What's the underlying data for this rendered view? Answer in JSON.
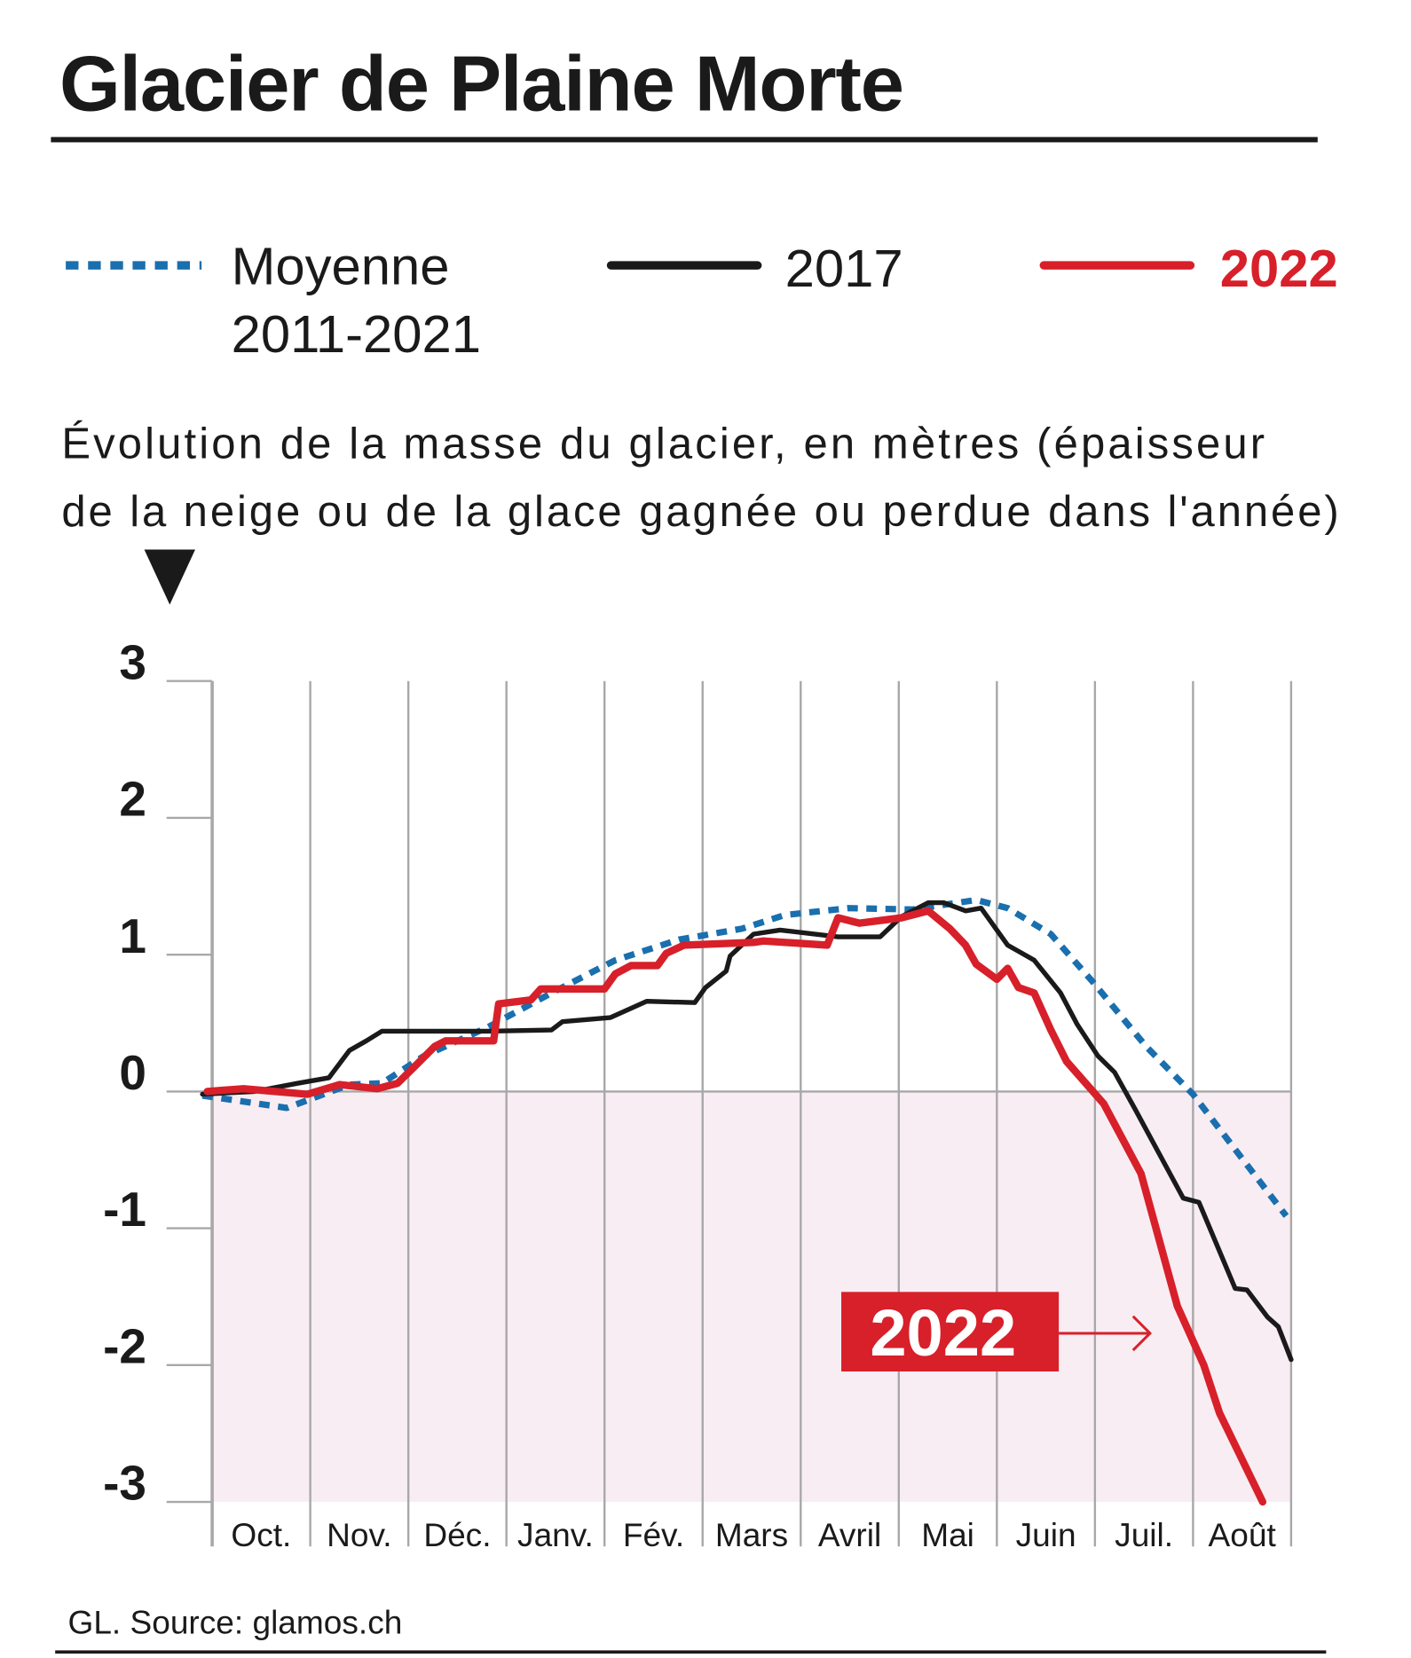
{
  "title": "Glacier de Plaine Morte",
  "legend": [
    {
      "name": "Moyenne",
      "name2": "2011-2021",
      "color": "#1a6fae",
      "style": "dotted"
    },
    {
      "name": "2017",
      "color": "#1a1a1a",
      "style": "solid"
    },
    {
      "name": "2022",
      "color": "#d7202a",
      "style": "solid"
    }
  ],
  "subtitle_line1": "Évolution de la masse du glacier, en mètres (épaisseur",
  "subtitle_line2": "de la neige ou de la glace gagnée ou perdue dans l'année)",
  "source": "GL. Source: glamos.ch",
  "annotation": "2022",
  "chart_data": {
    "type": "line",
    "title": "Glacier de Plaine Morte",
    "ylabel": "Évolution de la masse du glacier, en mètres",
    "ylim": [
      -3,
      3
    ],
    "yticks": [
      "3",
      "2",
      "1",
      "0",
      "-1",
      "-2",
      "-3"
    ],
    "ytick_values": [
      3,
      2,
      1,
      0,
      -1,
      -2,
      -3
    ],
    "xlim": [
      0,
      11
    ],
    "categories": [
      "Oct.",
      "Nov.",
      "Déc.",
      "Janv.",
      "Fév.",
      "Mars",
      "Avril",
      "Mai",
      "Juin",
      "Juil.",
      "Août"
    ],
    "grid": true,
    "series": [
      {
        "name": "Moyenne 2011-2021",
        "color": "#1a6fae",
        "points": [
          [
            -0.1,
            -0.03
          ],
          [
            0,
            -0.04
          ],
          [
            0.76,
            -0.12
          ],
          [
            1.4,
            0.05
          ],
          [
            1.73,
            0.06
          ],
          [
            2.16,
            0.26
          ],
          [
            2.81,
            0.47
          ],
          [
            3.46,
            0.72
          ],
          [
            4.11,
            0.96
          ],
          [
            4.76,
            1.11
          ],
          [
            5.4,
            1.19
          ],
          [
            5.84,
            1.29
          ],
          [
            6.49,
            1.34
          ],
          [
            7.14,
            1.33
          ],
          [
            7.79,
            1.4
          ],
          [
            8.11,
            1.34
          ],
          [
            8.55,
            1.15
          ],
          [
            8.98,
            0.8
          ],
          [
            9.52,
            0.33
          ],
          [
            10.0,
            -0.02
          ],
          [
            10.49,
            -0.48
          ],
          [
            10.95,
            -0.91
          ]
        ]
      },
      {
        "name": "2017",
        "color": "#1a1a1a",
        "points": [
          [
            -0.1,
            -0.02
          ],
          [
            0.43,
            0
          ],
          [
            0.87,
            0.06
          ],
          [
            1.19,
            0.1
          ],
          [
            1.4,
            0.3
          ],
          [
            1.57,
            0.37
          ],
          [
            1.73,
            0.44
          ],
          [
            2.81,
            0.44
          ],
          [
            3.46,
            0.45
          ],
          [
            3.57,
            0.51
          ],
          [
            4.06,
            0.54
          ],
          [
            4.43,
            0.66
          ],
          [
            4.92,
            0.65
          ],
          [
            5.03,
            0.76
          ],
          [
            5.24,
            0.88
          ],
          [
            5.28,
            0.99
          ],
          [
            5.52,
            1.15
          ],
          [
            5.79,
            1.18
          ],
          [
            6.38,
            1.13
          ],
          [
            6.81,
            1.13
          ],
          [
            7.03,
            1.28
          ],
          [
            7.3,
            1.38
          ],
          [
            7.46,
            1.38
          ],
          [
            7.68,
            1.32
          ],
          [
            7.84,
            1.34
          ],
          [
            8.11,
            1.07
          ],
          [
            8.38,
            0.96
          ],
          [
            8.65,
            0.72
          ],
          [
            8.82,
            0.49
          ],
          [
            9.03,
            0.26
          ],
          [
            9.2,
            0.14
          ],
          [
            9.41,
            -0.13
          ],
          [
            9.9,
            -0.78
          ],
          [
            10.06,
            -0.81
          ],
          [
            10.43,
            -1.44
          ],
          [
            10.55,
            -1.45
          ],
          [
            10.76,
            -1.65
          ],
          [
            10.87,
            -1.72
          ],
          [
            11,
            -1.96
          ]
        ]
      },
      {
        "name": "2022",
        "color": "#d7202a",
        "points": [
          [
            -0.05,
            0
          ],
          [
            0.32,
            0.02
          ],
          [
            0.97,
            -0.02
          ],
          [
            1.3,
            0.05
          ],
          [
            1.68,
            0.02
          ],
          [
            1.89,
            0.06
          ],
          [
            2.06,
            0.18
          ],
          [
            2.27,
            0.33
          ],
          [
            2.38,
            0.37
          ],
          [
            2.87,
            0.37
          ],
          [
            2.92,
            0.64
          ],
          [
            3.25,
            0.67
          ],
          [
            3.35,
            0.75
          ],
          [
            4.0,
            0.75
          ],
          [
            4.11,
            0.86
          ],
          [
            4.27,
            0.92
          ],
          [
            4.54,
            0.92
          ],
          [
            4.63,
            1.01
          ],
          [
            4.81,
            1.07
          ],
          [
            5.52,
            1.09
          ],
          [
            5.62,
            1.1
          ],
          [
            6.27,
            1.07
          ],
          [
            6.38,
            1.27
          ],
          [
            6.6,
            1.23
          ],
          [
            7.03,
            1.27
          ],
          [
            7.3,
            1.32
          ],
          [
            7.52,
            1.19
          ],
          [
            7.68,
            1.07
          ],
          [
            7.79,
            0.93
          ],
          [
            8.0,
            0.82
          ],
          [
            8.11,
            0.9
          ],
          [
            8.22,
            0.76
          ],
          [
            8.38,
            0.72
          ],
          [
            8.55,
            0.45
          ],
          [
            8.71,
            0.22
          ],
          [
            9.09,
            -0.09
          ],
          [
            9.47,
            -0.6
          ],
          [
            9.84,
            -1.57
          ],
          [
            10.11,
            -2.0
          ],
          [
            10.27,
            -2.35
          ],
          [
            10.71,
            -3.0
          ]
        ]
      }
    ]
  }
}
